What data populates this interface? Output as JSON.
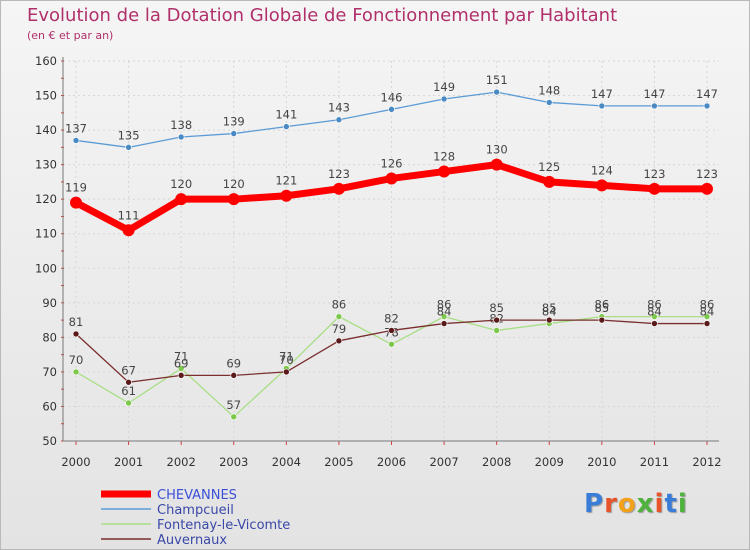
{
  "title": "Evolution de la Dotation Globale de Fonctionnement par Habitant",
  "subtitle": "(en € et par an)",
  "logo": "Proxiti",
  "chart_data": {
    "type": "line",
    "title": "Evolution de la Dotation Globale de Fonctionnement par Habitant",
    "subtitle": "(en € et par an)",
    "xlabel": "",
    "ylabel": "",
    "x": [
      "2000",
      "2001",
      "2002",
      "2003",
      "2004",
      "2005",
      "2006",
      "2007",
      "2008",
      "2009",
      "2010",
      "2011",
      "2012"
    ],
    "ylim": [
      50,
      160
    ],
    "yticks": [
      50,
      60,
      70,
      80,
      90,
      100,
      110,
      120,
      130,
      140,
      150,
      160
    ],
    "grid": true,
    "legend": "bottom-left",
    "series": [
      {
        "name": "Champcueil",
        "color": "#5b9bd5",
        "dot": "#4a8ac4",
        "width": 1.3,
        "values": [
          137,
          135,
          138,
          139,
          141,
          143,
          146,
          149,
          151,
          148,
          147,
          147,
          147
        ]
      },
      {
        "name": "Fontenay-le-Vicomte",
        "color": "#a9de85",
        "dot": "#7cc84a",
        "width": 1.3,
        "values": [
          70,
          61,
          71,
          57,
          71,
          86,
          78,
          86,
          82,
          84,
          86,
          86,
          86
        ]
      },
      {
        "name": "Auvernaux",
        "color": "#7a2e2e",
        "dot": "#5a1a1a",
        "width": 1.3,
        "values": [
          81,
          67,
          69,
          69,
          70,
          79,
          82,
          84,
          85,
          85,
          85,
          84,
          84
        ]
      },
      {
        "name": "CHEVANNES",
        "color": "#ff0000",
        "dot": "#ff0000",
        "width": 7,
        "values": [
          119,
          111,
          120,
          120,
          121,
          123,
          126,
          128,
          130,
          125,
          124,
          123,
          123
        ]
      }
    ],
    "legend_order": [
      "CHEVANNES",
      "Champcueil",
      "Fontenay-le-Vicomte",
      "Auvernaux"
    ]
  }
}
